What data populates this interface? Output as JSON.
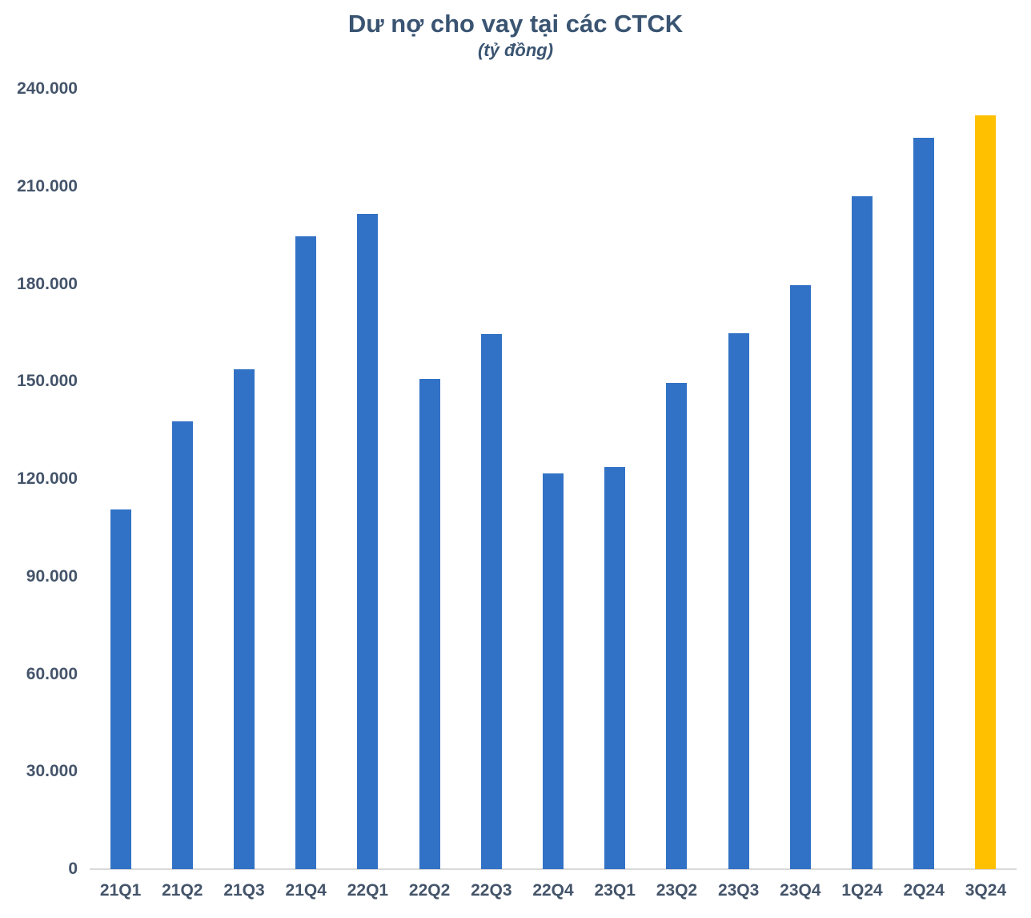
{
  "chart_data": {
    "type": "bar",
    "title": "Dư nợ cho vay tại các CTCK",
    "subtitle": "(tỷ đồng)",
    "categories": [
      "21Q1",
      "21Q2",
      "21Q3",
      "21Q4",
      "22Q1",
      "22Q2",
      "22Q3",
      "22Q4",
      "23Q1",
      "23Q2",
      "23Q3",
      "23Q4",
      "1Q24",
      "2Q24",
      "3Q24"
    ],
    "values": [
      110600,
      137700,
      153800,
      194700,
      201600,
      150700,
      164600,
      121700,
      123700,
      149600,
      164900,
      179700,
      206900,
      224900,
      231900
    ],
    "ylim": [
      0,
      240000
    ],
    "y_tick_step": 30000,
    "y_tick_labels": [
      "0",
      "30.000",
      "60.000",
      "90.000",
      "120.000",
      "150.000",
      "180.000",
      "210.000",
      "240.000"
    ],
    "grid": "off",
    "legend": "none",
    "colors": {
      "bar": "#3272C6",
      "highlight_bar": "#FFC000",
      "title_text": "#3A5472",
      "tick_text": "#44546A",
      "axis_line": "#D9D9D9"
    },
    "highlight_index": 14
  }
}
